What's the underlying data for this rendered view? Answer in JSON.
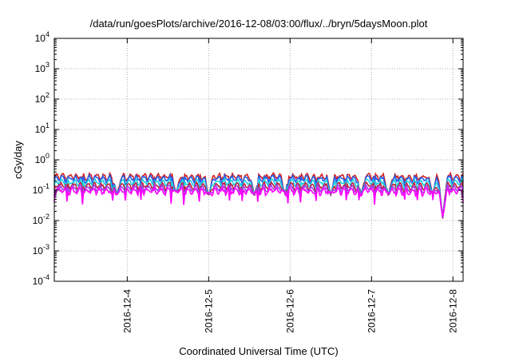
{
  "chart_data": {
    "type": "line",
    "title": "/data/run/goesPlots/archive/2016-12-08/03:00/flux/../bryn/5daysMoon.plot",
    "xlabel": "Coordinated Universal Time (UTC)",
    "ylabel": "cGy/day",
    "yscale": "log",
    "ylim": [
      0.0001,
      10000
    ],
    "xlim": [
      "2016-12-03T02:30",
      "2016-12-08T03:00"
    ],
    "grid": true,
    "x_ticks": [
      "2016-12-04",
      "2016-12-5",
      "2016-12-6",
      "2016-12-7",
      "2016-12-8"
    ],
    "y_ticks": [
      {
        "base": "10",
        "exp": "4"
      },
      {
        "base": "10",
        "exp": "3"
      },
      {
        "base": "10",
        "exp": "2"
      },
      {
        "base": "10",
        "exp": "1"
      },
      {
        "base": "10",
        "exp": "0"
      },
      {
        "base": "10",
        "exp": "-1"
      },
      {
        "base": "10",
        "exp": "-2"
      },
      {
        "base": "10",
        "exp": "-3"
      },
      {
        "base": "10",
        "exp": "-4"
      }
    ],
    "x_tick_display": [
      "2016-12-4",
      "2016-12-5",
      "2016-12-6",
      "2016-12-7",
      "2016-12-8"
    ],
    "series": [
      {
        "color": "#d62020",
        "level": 0.34,
        "spike_drop": 0.7
      },
      {
        "color": "#2060f0",
        "level": 0.29,
        "spike_drop": 0.65
      },
      {
        "color": "#20d0e0",
        "level": 0.22,
        "spike_drop": 0.6
      },
      {
        "color": "#c02040",
        "level": 0.17,
        "spike_drop": 0.55
      },
      {
        "color": "#a040f0",
        "level": 0.14,
        "spike_drop": 0.5
      },
      {
        "color": "#ff00ff",
        "level": 0.115,
        "spike_drop": 0.45
      }
    ],
    "dips": [
      {
        "time": "2016-12-03T21:00",
        "value": 0.07
      },
      {
        "time": "2016-12-04T14:30",
        "value": 0.08
      },
      {
        "time": "2016-12-05T00:00",
        "value": 0.065
      },
      {
        "time": "2016-12-05T13:30",
        "value": 0.065
      },
      {
        "time": "2016-12-05T22:30",
        "value": 0.075
      },
      {
        "time": "2016-12-06T12:00",
        "value": 0.07
      },
      {
        "time": "2016-12-06T21:00",
        "value": 0.07
      },
      {
        "time": "2016-12-07T05:00",
        "value": 0.065
      },
      {
        "time": "2016-12-07T18:00",
        "value": 0.075
      },
      {
        "time": "2016-12-07T21:00",
        "value": 0.011
      }
    ]
  }
}
